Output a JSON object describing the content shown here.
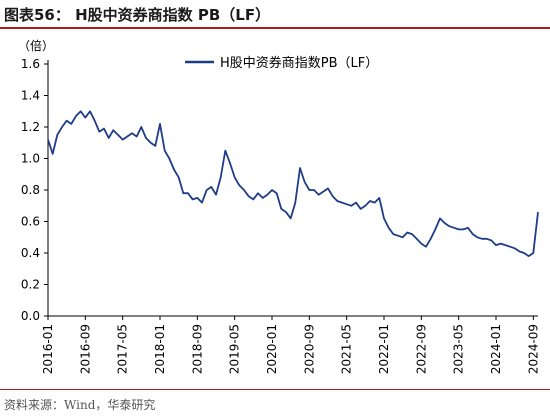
{
  "figure": {
    "title": "图表56：  H股中资券商指数 PB（LF）",
    "source": "资料来源：Wind，华泰研究"
  },
  "colors": {
    "series": "#1f3c88",
    "accent_rule": "#b31b1b",
    "axis": "#000000"
  },
  "chart_data": {
    "type": "line",
    "unit_label": "（倍）",
    "ylim": [
      0,
      1.6
    ],
    "yticks": [
      "0.0",
      "0.2",
      "0.4",
      "0.6",
      "0.8",
      "1.0",
      "1.2",
      "1.4",
      "1.6"
    ],
    "xticks": [
      "2016-01",
      "2016-09",
      "2017-05",
      "2018-01",
      "2018-09",
      "2019-05",
      "2020-01",
      "2020-09",
      "2021-05",
      "2022-01",
      "2022-09",
      "2023-05",
      "2024-01",
      "2024-09"
    ],
    "grid": false,
    "legend_position": "top-center",
    "series": [
      {
        "name": "H股中资券商指数PB（LF）",
        "x": [
          "2016-01",
          "2016-02",
          "2016-03",
          "2016-04",
          "2016-05",
          "2016-06",
          "2016-07",
          "2016-08",
          "2016-09",
          "2016-10",
          "2016-11",
          "2016-12",
          "2017-01",
          "2017-02",
          "2017-03",
          "2017-04",
          "2017-05",
          "2017-06",
          "2017-07",
          "2017-08",
          "2017-09",
          "2017-10",
          "2017-11",
          "2017-12",
          "2018-01",
          "2018-02",
          "2018-03",
          "2018-04",
          "2018-05",
          "2018-06",
          "2018-07",
          "2018-08",
          "2018-09",
          "2018-10",
          "2018-11",
          "2018-12",
          "2019-01",
          "2019-02",
          "2019-03",
          "2019-04",
          "2019-05",
          "2019-06",
          "2019-07",
          "2019-08",
          "2019-09",
          "2019-10",
          "2019-11",
          "2019-12",
          "2020-01",
          "2020-02",
          "2020-03",
          "2020-04",
          "2020-05",
          "2020-06",
          "2020-07",
          "2020-08",
          "2020-09",
          "2020-10",
          "2020-11",
          "2020-12",
          "2021-01",
          "2021-02",
          "2021-03",
          "2021-04",
          "2021-05",
          "2021-06",
          "2021-07",
          "2021-08",
          "2021-09",
          "2021-10",
          "2021-11",
          "2021-12",
          "2022-01",
          "2022-02",
          "2022-03",
          "2022-04",
          "2022-05",
          "2022-06",
          "2022-07",
          "2022-08",
          "2022-09",
          "2022-10",
          "2022-11",
          "2022-12",
          "2023-01",
          "2023-02",
          "2023-03",
          "2023-04",
          "2023-05",
          "2023-06",
          "2023-07",
          "2023-08",
          "2023-09",
          "2023-10",
          "2023-11",
          "2023-12",
          "2024-01",
          "2024-02",
          "2024-03",
          "2024-04",
          "2024-05",
          "2024-06",
          "2024-07",
          "2024-08",
          "2024-09",
          "2024-10"
        ],
        "values": [
          1.12,
          1.03,
          1.15,
          1.2,
          1.24,
          1.22,
          1.27,
          1.3,
          1.26,
          1.3,
          1.24,
          1.17,
          1.19,
          1.13,
          1.18,
          1.15,
          1.12,
          1.14,
          1.16,
          1.14,
          1.2,
          1.13,
          1.1,
          1.08,
          1.22,
          1.05,
          1.0,
          0.93,
          0.88,
          0.78,
          0.78,
          0.74,
          0.75,
          0.72,
          0.8,
          0.82,
          0.77,
          0.88,
          1.05,
          0.97,
          0.88,
          0.83,
          0.8,
          0.76,
          0.74,
          0.78,
          0.75,
          0.77,
          0.8,
          0.78,
          0.68,
          0.66,
          0.62,
          0.72,
          0.94,
          0.85,
          0.8,
          0.8,
          0.77,
          0.79,
          0.81,
          0.76,
          0.73,
          0.72,
          0.71,
          0.7,
          0.72,
          0.68,
          0.7,
          0.73,
          0.72,
          0.75,
          0.62,
          0.56,
          0.52,
          0.51,
          0.5,
          0.53,
          0.52,
          0.49,
          0.46,
          0.44,
          0.49,
          0.55,
          0.62,
          0.59,
          0.57,
          0.56,
          0.55,
          0.55,
          0.56,
          0.52,
          0.5,
          0.49,
          0.49,
          0.48,
          0.45,
          0.46,
          0.45,
          0.44,
          0.43,
          0.41,
          0.4,
          0.38,
          0.4,
          0.66
        ]
      }
    ]
  }
}
